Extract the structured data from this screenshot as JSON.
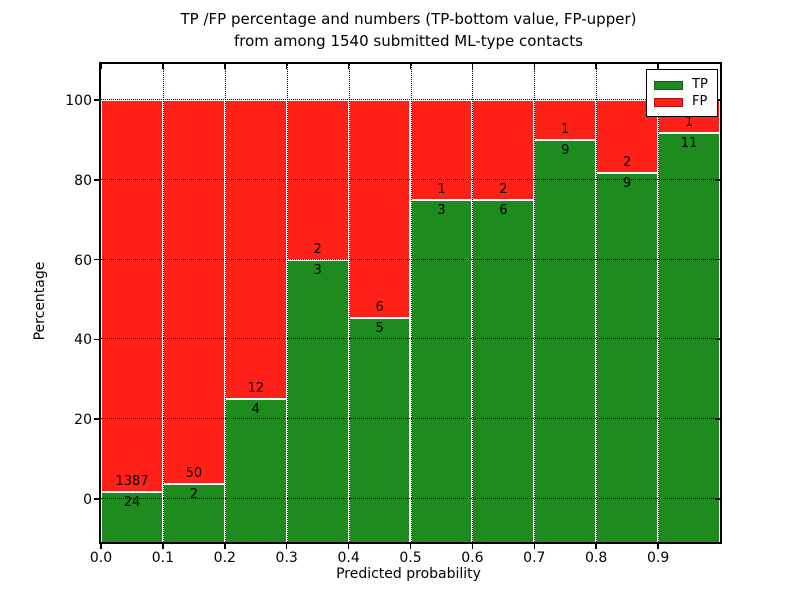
{
  "title": {
    "line1": "TP /FP percentage and numbers (TP-bottom value, FP-upper)",
    "line2": "from among 1540 submitted ML-type contacts"
  },
  "axes": {
    "xlabel": "Predicted probability",
    "ylabel": "Percentage",
    "x_tick_labels": [
      "0.0",
      "0.1",
      "0.2",
      "0.3",
      "0.4",
      "0.5",
      "0.6",
      "0.7",
      "0.8",
      "0.9"
    ],
    "y_tick_labels": [
      "0",
      "20",
      "40",
      "60",
      "80",
      "100"
    ],
    "y_tick_values": [
      0,
      20,
      40,
      60,
      80,
      100
    ]
  },
  "legend": {
    "items": [
      {
        "label": "TP",
        "color": "#1e8b1e"
      },
      {
        "label": "FP",
        "color": "#ff2018"
      }
    ]
  },
  "chart_data": {
    "type": "bar",
    "stacked": true,
    "title": "TP /FP percentage and numbers (TP-bottom value, FP-upper) from among 1540 submitted ML-type contacts",
    "xlabel": "Predicted probability",
    "ylabel": "Percentage",
    "total_contacts": 1540,
    "bin_edges": [
      0.0,
      0.1,
      0.2,
      0.3,
      0.4,
      0.5,
      0.6,
      0.7,
      0.8,
      0.9,
      1.0
    ],
    "categories": [
      "0.0-0.1",
      "0.1-0.2",
      "0.2-0.3",
      "0.3-0.4",
      "0.4-0.5",
      "0.5-0.6",
      "0.6-0.7",
      "0.7-0.8",
      "0.8-0.9",
      "0.9-1.0"
    ],
    "series": [
      {
        "name": "TP",
        "color": "#1e8b1e",
        "counts": [
          24,
          2,
          4,
          3,
          5,
          3,
          6,
          9,
          9,
          11
        ],
        "percentages": [
          1.7,
          3.85,
          25.0,
          60.0,
          45.45,
          75.0,
          75.0,
          90.0,
          81.82,
          91.67
        ]
      },
      {
        "name": "FP",
        "color": "#ff2018",
        "counts": [
          1387,
          50,
          12,
          2,
          6,
          1,
          2,
          1,
          2,
          1
        ],
        "percentages": [
          98.3,
          96.15,
          75.0,
          40.0,
          54.55,
          25.0,
          25.0,
          10.0,
          18.18,
          8.33
        ]
      }
    ],
    "ylim": [
      -10.8,
      109.2
    ],
    "xlim": [
      0.0,
      1.0
    ],
    "grid": "dotted, horizontal at y ticks and vertical at x ticks",
    "legend_position": "upper right"
  }
}
